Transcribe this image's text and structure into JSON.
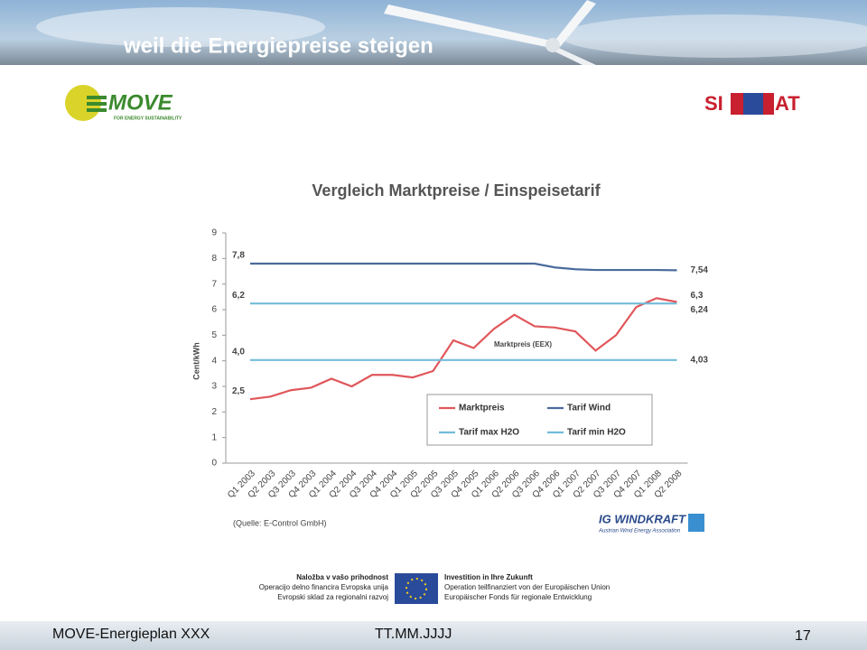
{
  "header": {
    "title": "weil die Energiepreise steigen"
  },
  "logos": {
    "move": "MOVE",
    "move_tagline": "FOR ENERGY SUSTAINABILITY",
    "siat_left": "SI",
    "siat_right": "AT",
    "ig_windkraft": "IG WINDKRAFT",
    "ig_tagline": "Austrian Wind Energy Association"
  },
  "chart_data": {
    "type": "line",
    "title": "Vergleich Marktpreise / Einspeisetarif",
    "y_label": "Cent/kWh",
    "annotation": "Marktpreis (EEX)",
    "source": "(Quelle: E-Control GmbH)",
    "categories": [
      "Q1 2003",
      "Q2 2003",
      "Q3 2003",
      "Q4 2003",
      "Q1 2004",
      "Q2 2004",
      "Q3 2004",
      "Q4 2004",
      "Q1 2005",
      "Q2 2005",
      "Q3 2005",
      "Q4 2005",
      "Q1 2006",
      "Q2 2006",
      "Q3 2006",
      "Q4 2006",
      "Q1 2007",
      "Q2 2007",
      "Q3 2007",
      "Q4 2007",
      "Q1 2008",
      "Q2 2008"
    ],
    "ylim": [
      0,
      9
    ],
    "yticks": [
      0,
      1,
      2,
      3,
      4,
      5,
      6,
      7,
      8,
      9
    ],
    "grid": false,
    "series": [
      {
        "name": "Marktpreis",
        "color": "#e0575b",
        "values": [
          2.5,
          2.6,
          2.85,
          2.95,
          3.3,
          3.0,
          3.45,
          3.45,
          3.35,
          3.6,
          4.8,
          4.5,
          5.25,
          5.8,
          5.35,
          5.3,
          5.15,
          4.4,
          5.0,
          6.1,
          6.45,
          6.3
        ],
        "value_labels": [
          "2,5",
          null,
          null,
          null,
          null,
          null,
          null,
          null,
          null,
          null,
          null,
          null,
          null,
          null,
          null,
          null,
          null,
          null,
          null,
          null,
          null,
          "6,3"
        ]
      },
      {
        "name": "Tarif Wind",
        "color": "#4a6b9c",
        "values": [
          7.8,
          7.8,
          7.8,
          7.8,
          7.8,
          7.8,
          7.8,
          7.8,
          7.8,
          7.8,
          7.8,
          7.8,
          7.8,
          7.8,
          7.8,
          7.65,
          7.58,
          7.55,
          7.55,
          7.55,
          7.55,
          7.54
        ],
        "value_labels": [
          "7,8",
          null,
          null,
          null,
          null,
          null,
          null,
          null,
          null,
          null,
          null,
          null,
          null,
          null,
          null,
          null,
          null,
          null,
          null,
          null,
          null,
          "7,54"
        ]
      },
      {
        "name": "Tarif max H2O",
        "color": "#72bcd9",
        "values": [
          6.24,
          6.24,
          6.24,
          6.24,
          6.24,
          6.24,
          6.24,
          6.24,
          6.24,
          6.24,
          6.24,
          6.24,
          6.24,
          6.24,
          6.24,
          6.24,
          6.24,
          6.24,
          6.24,
          6.24,
          6.24,
          6.24
        ],
        "value_labels": [
          "6,2",
          null,
          null,
          null,
          null,
          null,
          null,
          null,
          null,
          null,
          null,
          null,
          null,
          null,
          null,
          null,
          null,
          null,
          null,
          null,
          null,
          "6,24"
        ]
      },
      {
        "name": "Tarif min H2O",
        "color": "#72bcd9",
        "values": [
          4.03,
          4.03,
          4.03,
          4.03,
          4.03,
          4.03,
          4.03,
          4.03,
          4.03,
          4.03,
          4.03,
          4.03,
          4.03,
          4.03,
          4.03,
          4.03,
          4.03,
          4.03,
          4.03,
          4.03,
          4.03,
          4.03
        ],
        "value_labels": [
          "4,0",
          null,
          null,
          null,
          null,
          null,
          null,
          null,
          null,
          null,
          null,
          null,
          null,
          null,
          null,
          null,
          null,
          null,
          null,
          null,
          null,
          "4,03"
        ]
      }
    ]
  },
  "funding": {
    "left": [
      "Naložba v vašo prihodnost",
      "Operacijo delno financira Evropska unija",
      "Evropski sklad za regionalni razvoj"
    ],
    "right": [
      "Investition in Ihre Zukunft",
      "Operation teilfinanziert von der Europäischen Union",
      "Europäischer Fonds für regionale Entwicklung"
    ]
  },
  "footer": {
    "left": "MOVE-Energieplan XXX",
    "center": "TT.MM.JJJJ",
    "page": "17"
  }
}
